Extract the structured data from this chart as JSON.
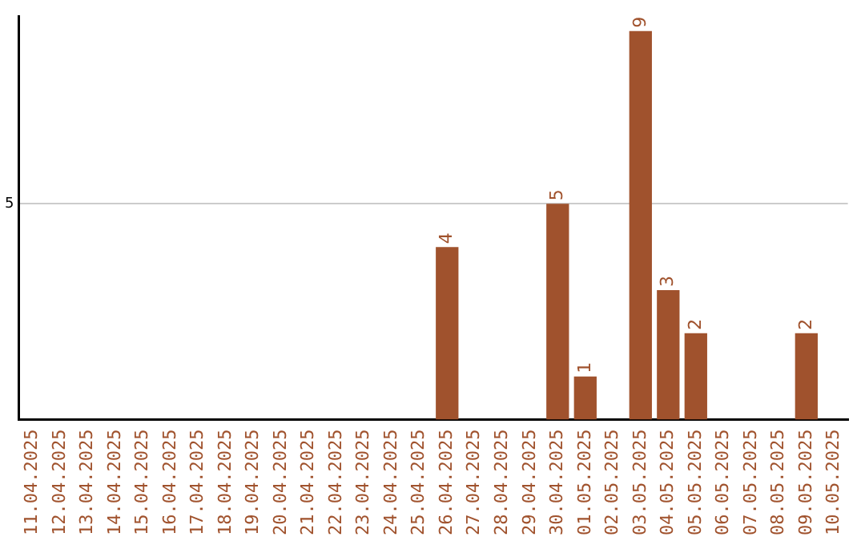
{
  "chart_data": {
    "type": "bar",
    "categories": [
      "11.04.2025",
      "12.04.2025",
      "13.04.2025",
      "14.04.2025",
      "15.04.2025",
      "16.04.2025",
      "17.04.2025",
      "18.04.2025",
      "19.04.2025",
      "20.04.2025",
      "21.04.2025",
      "22.04.2025",
      "23.04.2025",
      "24.04.2025",
      "25.04.2025",
      "26.04.2025",
      "27.04.2025",
      "28.04.2025",
      "29.04.2025",
      "30.04.2025",
      "01.05.2025",
      "02.05.2025",
      "03.05.2025",
      "04.05.2025",
      "05.05.2025",
      "06.05.2025",
      "07.05.2025",
      "08.05.2025",
      "09.05.2025",
      "10.05.2025"
    ],
    "values": [
      null,
      null,
      null,
      null,
      null,
      null,
      null,
      null,
      null,
      null,
      null,
      null,
      null,
      null,
      null,
      4,
      null,
      null,
      null,
      5,
      1,
      null,
      9,
      3,
      2,
      null,
      null,
      null,
      2,
      null
    ],
    "color": "#a0522d",
    "ylim": [
      0,
      9.35
    ],
    "yticks": [
      5
    ],
    "grid": "y",
    "data_labels": true,
    "legend": false
  }
}
